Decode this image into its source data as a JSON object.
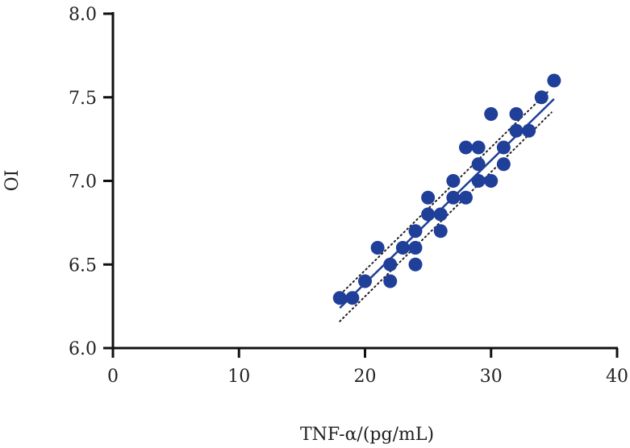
{
  "chart_data": {
    "type": "scatter",
    "title": "",
    "xlabel": "TNF-α/(pg/mL)",
    "ylabel": "OI",
    "xlim": [
      0,
      40
    ],
    "ylim": [
      6.0,
      8.0
    ],
    "xticks": [
      0,
      10,
      20,
      30,
      40
    ],
    "yticks": [
      6.0,
      6.5,
      7.0,
      7.5,
      8.0
    ],
    "xtick_labels": [
      "0",
      "10",
      "20",
      "30",
      "40"
    ],
    "ytick_labels": [
      "6.0",
      "6.5",
      "7.0",
      "7.5",
      "8.0"
    ],
    "grid": false,
    "point_color": "#1f3f99",
    "points": [
      [
        18,
        6.3
      ],
      [
        19,
        6.3
      ],
      [
        20,
        6.4
      ],
      [
        21,
        6.6
      ],
      [
        22,
        6.5
      ],
      [
        22,
        6.4
      ],
      [
        23,
        6.6
      ],
      [
        24,
        6.7
      ],
      [
        24,
        6.6
      ],
      [
        24,
        6.5
      ],
      [
        25,
        6.9
      ],
      [
        25,
        6.8
      ],
      [
        26,
        6.8
      ],
      [
        26,
        6.7
      ],
      [
        27,
        7.0
      ],
      [
        27,
        6.9
      ],
      [
        28,
        7.2
      ],
      [
        28,
        6.9
      ],
      [
        29,
        7.2
      ],
      [
        29,
        7.1
      ],
      [
        29,
        7.0
      ],
      [
        30,
        7.4
      ],
      [
        30,
        7.0
      ],
      [
        31,
        7.2
      ],
      [
        31,
        7.1
      ],
      [
        32,
        7.4
      ],
      [
        32,
        7.3
      ],
      [
        33,
        7.3
      ],
      [
        34,
        7.5
      ],
      [
        35,
        7.6
      ]
    ],
    "fit_line": {
      "x": [
        18,
        35
      ],
      "y": [
        6.24,
        7.49
      ]
    },
    "ci_upper": {
      "x": [
        18.3,
        34.6
      ],
      "y": [
        6.34,
        7.54
      ]
    },
    "ci_lower": {
      "x": [
        18,
        34.8
      ],
      "y": [
        6.16,
        7.41
      ]
    }
  }
}
